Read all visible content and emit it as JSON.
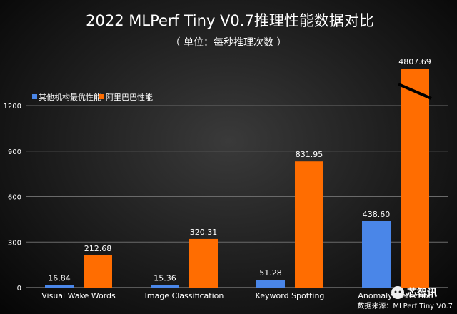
{
  "chart_data": {
    "type": "bar",
    "title": "2022 MLPerf Tiny V0.7推理性能数据对比",
    "subtitle": "（ 单位：每秒推理次数 ）",
    "categories": [
      "Visual Wake Words",
      "Image Classification",
      "Keyword Spotting",
      "Anomaly Detection"
    ],
    "series": [
      {
        "name": "其他机构最优性能",
        "values": [
          16.84,
          15.36,
          51.28,
          438.6
        ],
        "labels": [
          "16.84",
          "15.36",
          "51.28",
          "438.60"
        ],
        "color": "#4a86e8"
      },
      {
        "name": "阿里巴巴性能",
        "values": [
          212.68,
          320.31,
          831.95,
          4807.69
        ],
        "labels": [
          "212.68",
          "320.31",
          "831.95",
          "4807.69"
        ],
        "color": "#ff6d01"
      }
    ],
    "yticks": [
      "0",
      "300",
      "600",
      "900",
      "1200"
    ],
    "ylim": [
      0,
      1200
    ],
    "axis_break": true,
    "legend_position": "top-left",
    "grid": true,
    "watermark": "芯智讯",
    "source": "数据来源：MLPerf Tiny V0.7"
  }
}
